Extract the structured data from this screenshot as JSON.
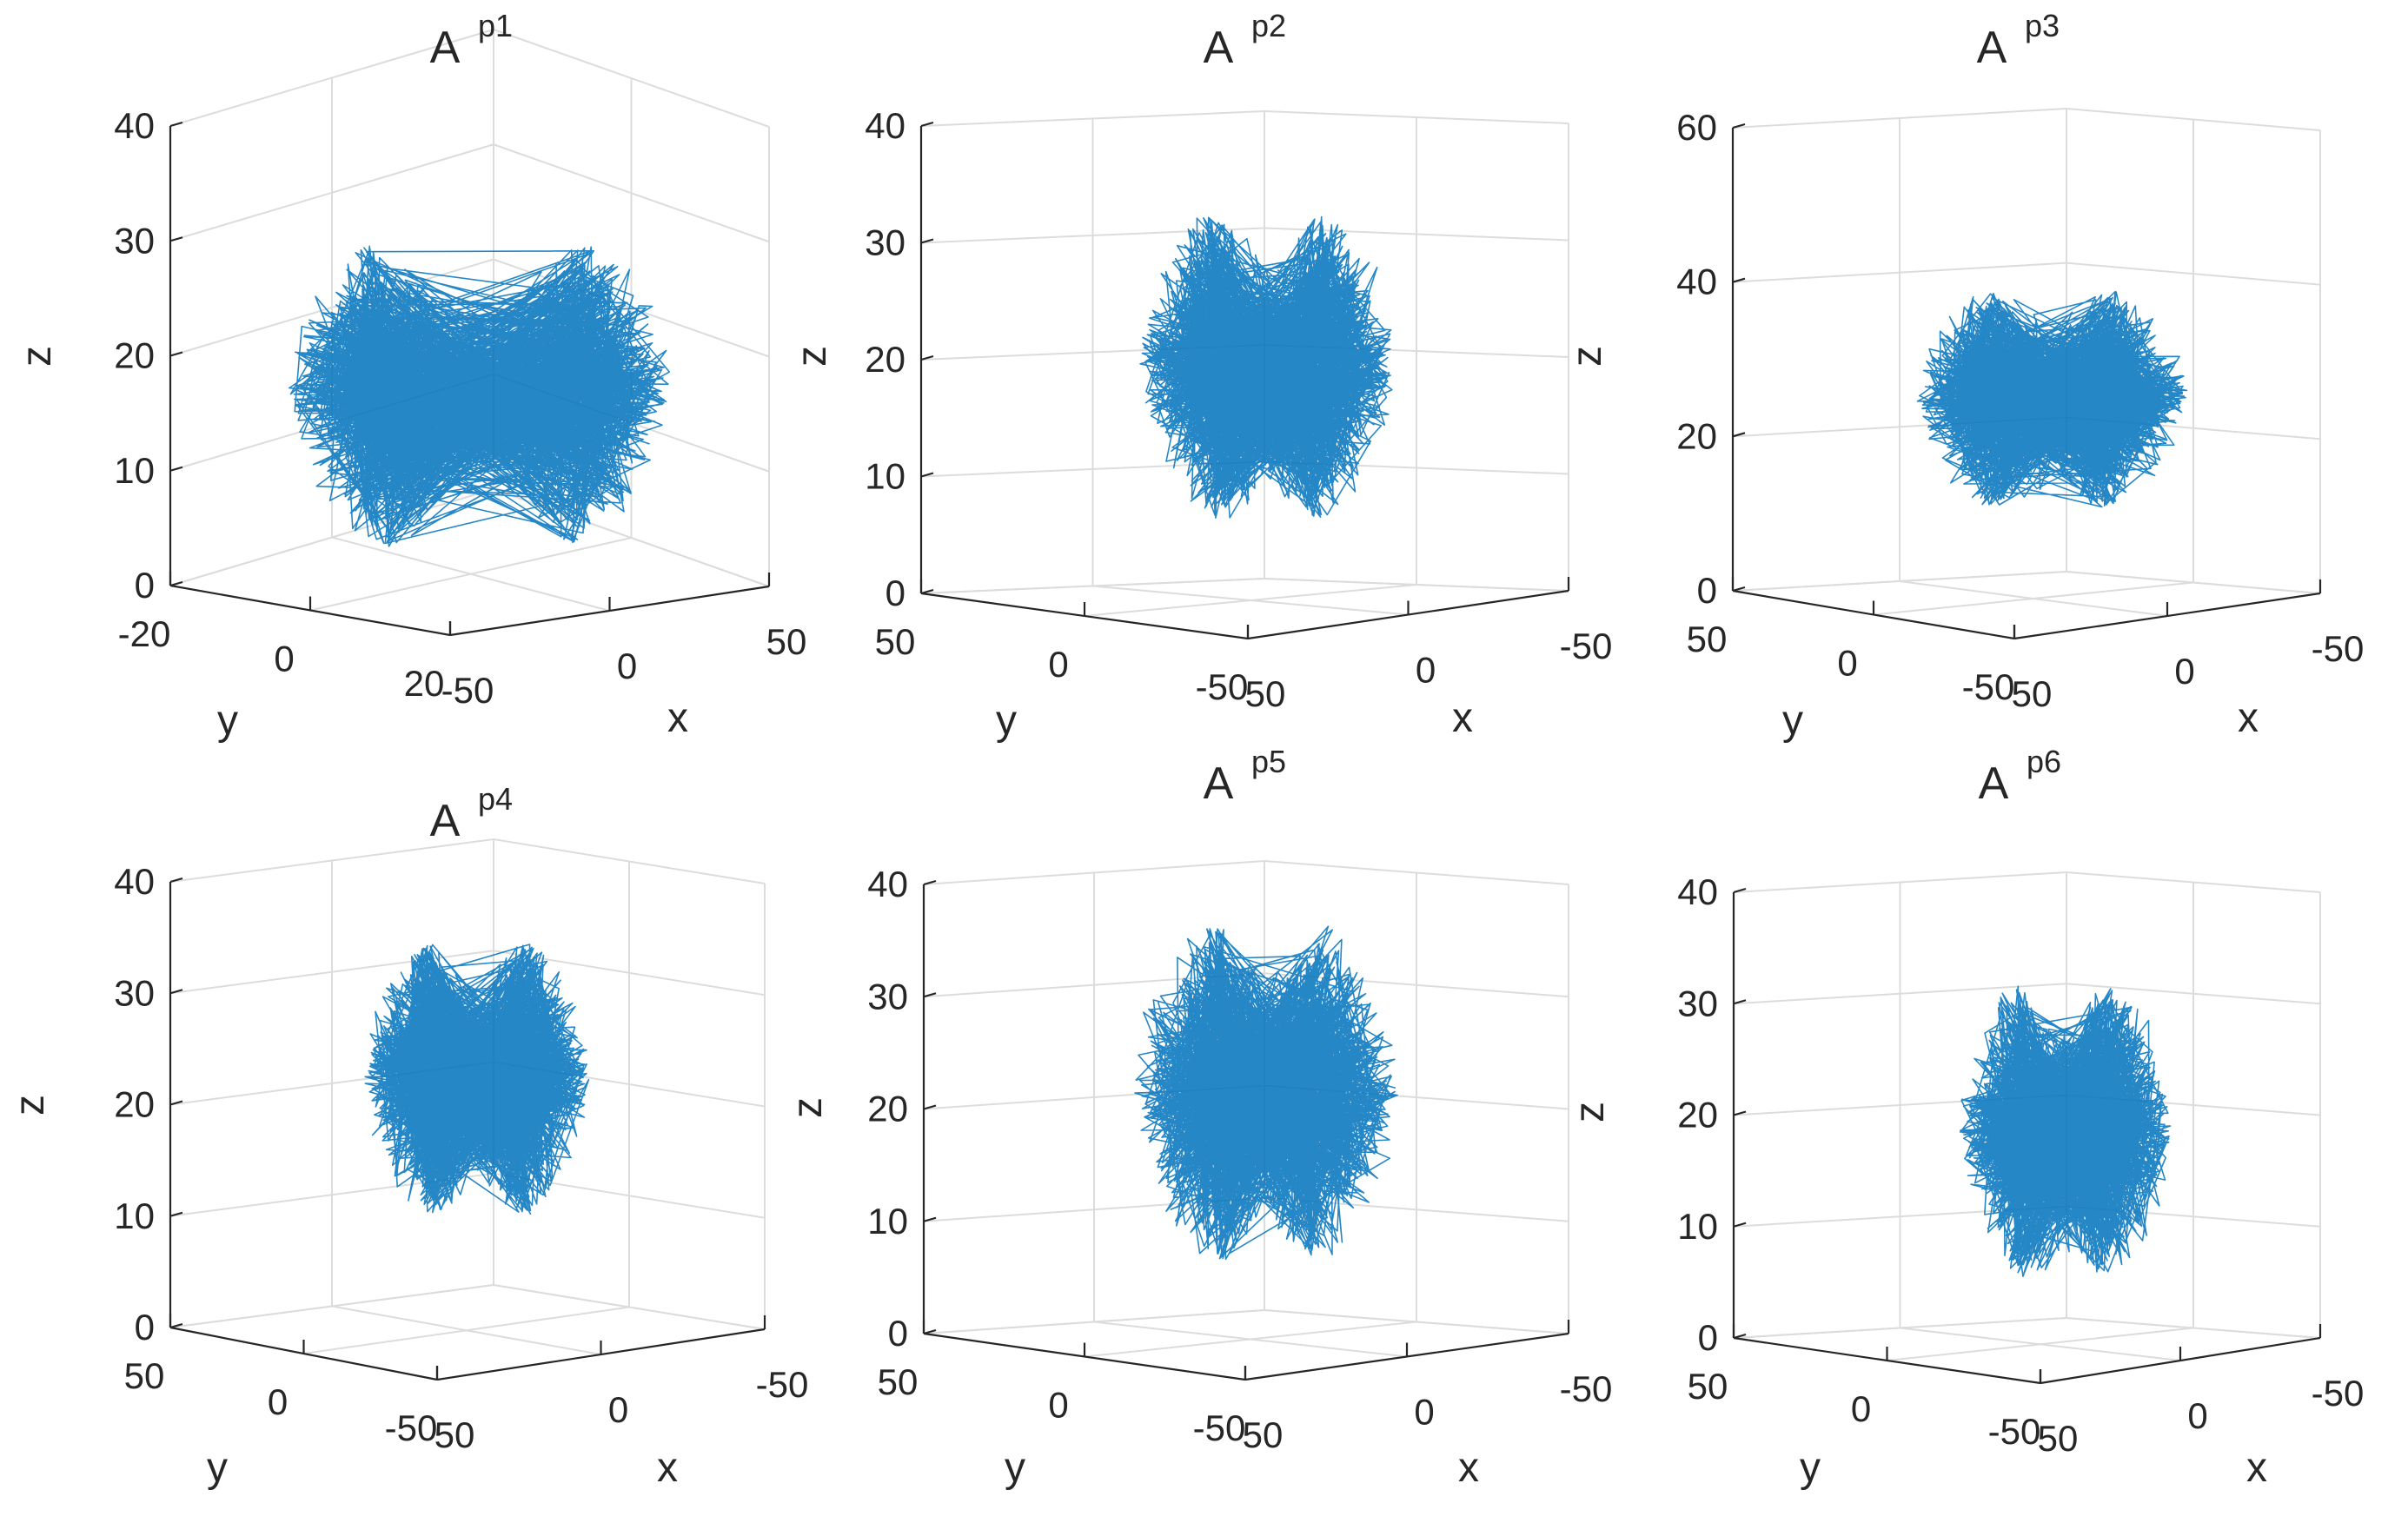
{
  "figure": {
    "series_color": "#0072BD"
  },
  "chart_data": [
    {
      "type": "line3d",
      "title": "A",
      "title_superscript": "p1",
      "xlabel": "x",
      "ylabel": "y",
      "zlabel": "z",
      "xlim": [
        -50,
        50
      ],
      "ylim": [
        -20,
        20
      ],
      "zlim": [
        0,
        40
      ],
      "x_ticks": [
        "-50",
        "0",
        "50"
      ],
      "y_ticks": [
        "-20",
        "0",
        "20"
      ],
      "z_ticks": [
        "0",
        "10",
        "20",
        "30",
        "40"
      ],
      "attractor": {
        "left_lobe_center": [
          -20,
          0,
          16
        ],
        "right_lobe_center": [
          20,
          0,
          16
        ],
        "radius_x": [
          3,
          18
        ],
        "radius_z": [
          2,
          14
        ],
        "lean": 8
      }
    },
    {
      "type": "line3d",
      "title": "A",
      "title_superscript": "p2",
      "xlabel": "x",
      "ylabel": "y",
      "zlabel": "z",
      "xlim": [
        -50,
        50
      ],
      "ylim": [
        -50,
        50
      ],
      "zlim": [
        0,
        40
      ],
      "x_ticks": [
        "50",
        "0",
        "-50"
      ],
      "y_ticks": [
        "50",
        "0",
        "-50"
      ],
      "z_ticks": [
        "0",
        "10",
        "20",
        "30",
        "40"
      ],
      "attractor": {
        "left_lobe_center": [
          -9,
          0,
          19
        ],
        "right_lobe_center": [
          10,
          0,
          19
        ],
        "radius_x": [
          2,
          14
        ],
        "radius_z": [
          2,
          14
        ],
        "lean": 4
      }
    },
    {
      "type": "line3d",
      "title": "A",
      "title_superscript": "p3",
      "xlabel": "x",
      "ylabel": "y",
      "zlabel": "z",
      "xlim": [
        -50,
        50
      ],
      "ylim": [
        -50,
        50
      ],
      "zlim": [
        0,
        60
      ],
      "x_ticks": [
        "50",
        "0",
        "-50"
      ],
      "y_ticks": [
        "50",
        "0",
        "-50"
      ],
      "z_ticks": [
        "0",
        "20",
        "40",
        "60"
      ],
      "attractor": {
        "left_lobe_center": [
          -11,
          0,
          24
        ],
        "right_lobe_center": [
          12,
          0,
          24
        ],
        "radius_x": [
          2,
          16
        ],
        "radius_z": [
          2,
          15
        ],
        "lean": 4
      }
    },
    {
      "type": "line3d",
      "title": "A",
      "title_superscript": "p4",
      "xlabel": "x",
      "ylabel": "y",
      "zlabel": "z",
      "xlim": [
        -50,
        50
      ],
      "ylim": [
        -50,
        50
      ],
      "zlim": [
        0,
        40
      ],
      "x_ticks": [
        "50",
        "0",
        "-50"
      ],
      "y_ticks": [
        "50",
        "0",
        "-50"
      ],
      "z_ticks": [
        "0",
        "10",
        "20",
        "30",
        "40"
      ],
      "attractor": {
        "left_lobe_center": [
          -9,
          0,
          22
        ],
        "right_lobe_center": [
          10,
          0,
          22
        ],
        "radius_x": [
          2,
          13
        ],
        "radius_z": [
          2,
          13
        ],
        "lean": 3
      }
    },
    {
      "type": "line3d",
      "title": "A",
      "title_superscript": "p5",
      "xlabel": "x",
      "ylabel": "y",
      "zlabel": "z",
      "xlim": [
        -50,
        50
      ],
      "ylim": [
        -50,
        50
      ],
      "zlim": [
        0,
        40
      ],
      "x_ticks": [
        "50",
        "0",
        "-50"
      ],
      "y_ticks": [
        "50",
        "0",
        "-50"
      ],
      "z_ticks": [
        "0",
        "10",
        "20",
        "30",
        "40"
      ],
      "attractor": {
        "left_lobe_center": [
          -9,
          0,
          21
        ],
        "right_lobe_center": [
          10,
          0,
          21
        ],
        "radius_x": [
          2,
          15
        ],
        "radius_z": [
          2,
          16
        ],
        "lean": 3
      }
    },
    {
      "type": "line3d",
      "title": "A",
      "title_superscript": "p6",
      "xlabel": "x",
      "ylabel": "y",
      "zlabel": "z",
      "xlim": [
        -50,
        50
      ],
      "ylim": [
        -50,
        50
      ],
      "zlim": [
        0,
        40
      ],
      "x_ticks": [
        "50",
        "0",
        "-50"
      ],
      "y_ticks": [
        "50",
        "0",
        "-50"
      ],
      "z_ticks": [
        "0",
        "10",
        "20",
        "30",
        "40"
      ],
      "attractor": {
        "left_lobe_center": [
          -8,
          0,
          18
        ],
        "right_lobe_center": [
          9,
          0,
          18
        ],
        "radius_x": [
          2,
          13
        ],
        "radius_z": [
          2,
          14
        ],
        "lean": 3
      }
    }
  ]
}
